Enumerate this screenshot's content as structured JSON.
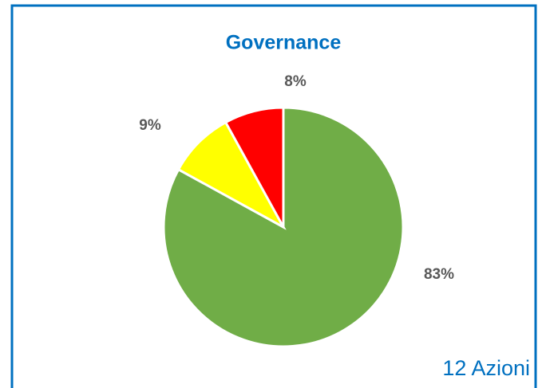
{
  "chart_data": {
    "type": "pie",
    "title": "Governance",
    "values": [
      83,
      9,
      8
    ],
    "value_labels": [
      "83%",
      "9%",
      "8%"
    ],
    "colors": [
      "#70ad47",
      "#ffff00",
      "#ff0000"
    ],
    "annotation": "12 Azioni"
  }
}
